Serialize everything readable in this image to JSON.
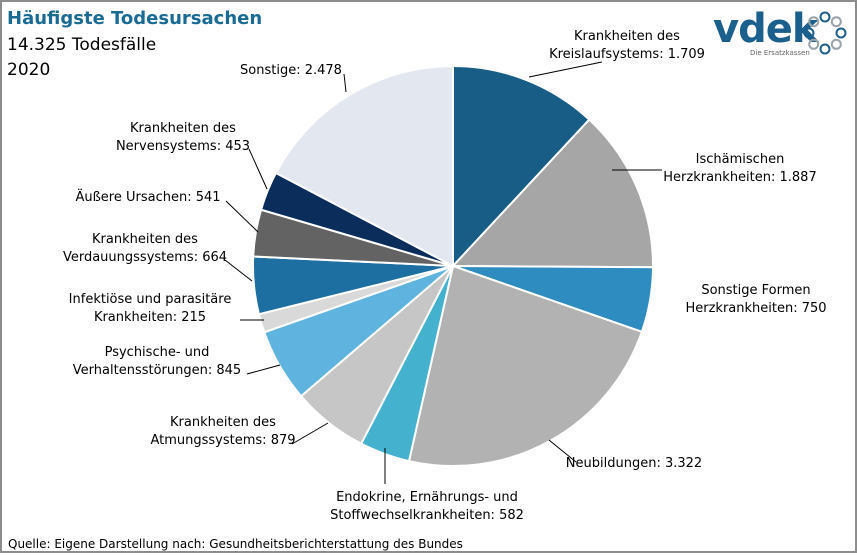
{
  "title": "Häufigste Todesursachen",
  "subtitle": "14.325 Todesfälle",
  "year": "2020",
  "source": "Quelle: Eigene Darstellung nach: Gesundheitsberichterstattung  des Bundes",
  "logo": {
    "brand": "vdek",
    "tagline": "Die Ersatzkassen",
    "color": "#1b5f8c"
  },
  "chart_data": {
    "type": "pie",
    "title": "Häufigste Todesursachen",
    "total": 14325,
    "categories": [
      "Krankheiten des Kreislaufsystems",
      "Ischämischen Herzkrankheiten",
      "Sonstige Formen Herzkrankheiten",
      "Neubildungen",
      "Endokrine, Ernährungs- und Stoffwechselkrankheiten",
      "Krankheiten des Atmungssystems",
      "Psychische- und Verhaltensstörungen",
      "Infektiöse und parasitäre Krankheiten",
      "Krankheiten des Verdauungssystems",
      "Äußere Ursachen",
      "Krankheiten des Nervensystems",
      "Sonstige"
    ],
    "values": [
      1709,
      1887,
      750,
      3322,
      582,
      879,
      845,
      215,
      664,
      541,
      453,
      2478
    ],
    "colors": [
      "#175d86",
      "#a6a6a6",
      "#2e8cc0",
      "#b2b2b2",
      "#44b2cf",
      "#c6c6c6",
      "#5fb4df",
      "#d9d9d9",
      "#1d6ea1",
      "#636363",
      "#0b2d5c",
      "#e3e8f0"
    ],
    "labels": [
      [
        "Krankheiten des",
        "Kreislaufsystems: 1.709"
      ],
      [
        "Ischämischen",
        "Herzkrankheiten: 1.887"
      ],
      [
        "Sonstige Formen",
        "Herzkrankheiten: 750"
      ],
      [
        "Neubildungen: 3.322"
      ],
      [
        "Endokrine, Ernährungs- und",
        "Stoffwechselkrankheiten: 582"
      ],
      [
        "Krankheiten des",
        "Atmungssystems: 879"
      ],
      [
        "Psychische- und",
        "Verhaltensstörungen: 845"
      ],
      [
        "Infektiöse und parasitäre",
        "Krankheiten: 215"
      ],
      [
        "Krankheiten des",
        "Verdauungssystems: 664"
      ],
      [
        "Äußere Ursachen: 541"
      ],
      [
        "Krankheiten des",
        "Nervensystems: 453"
      ],
      [
        "Sonstige: 2.478"
      ]
    ],
    "start_angle_deg": 0,
    "direction": "clockwise",
    "legend": "none"
  }
}
